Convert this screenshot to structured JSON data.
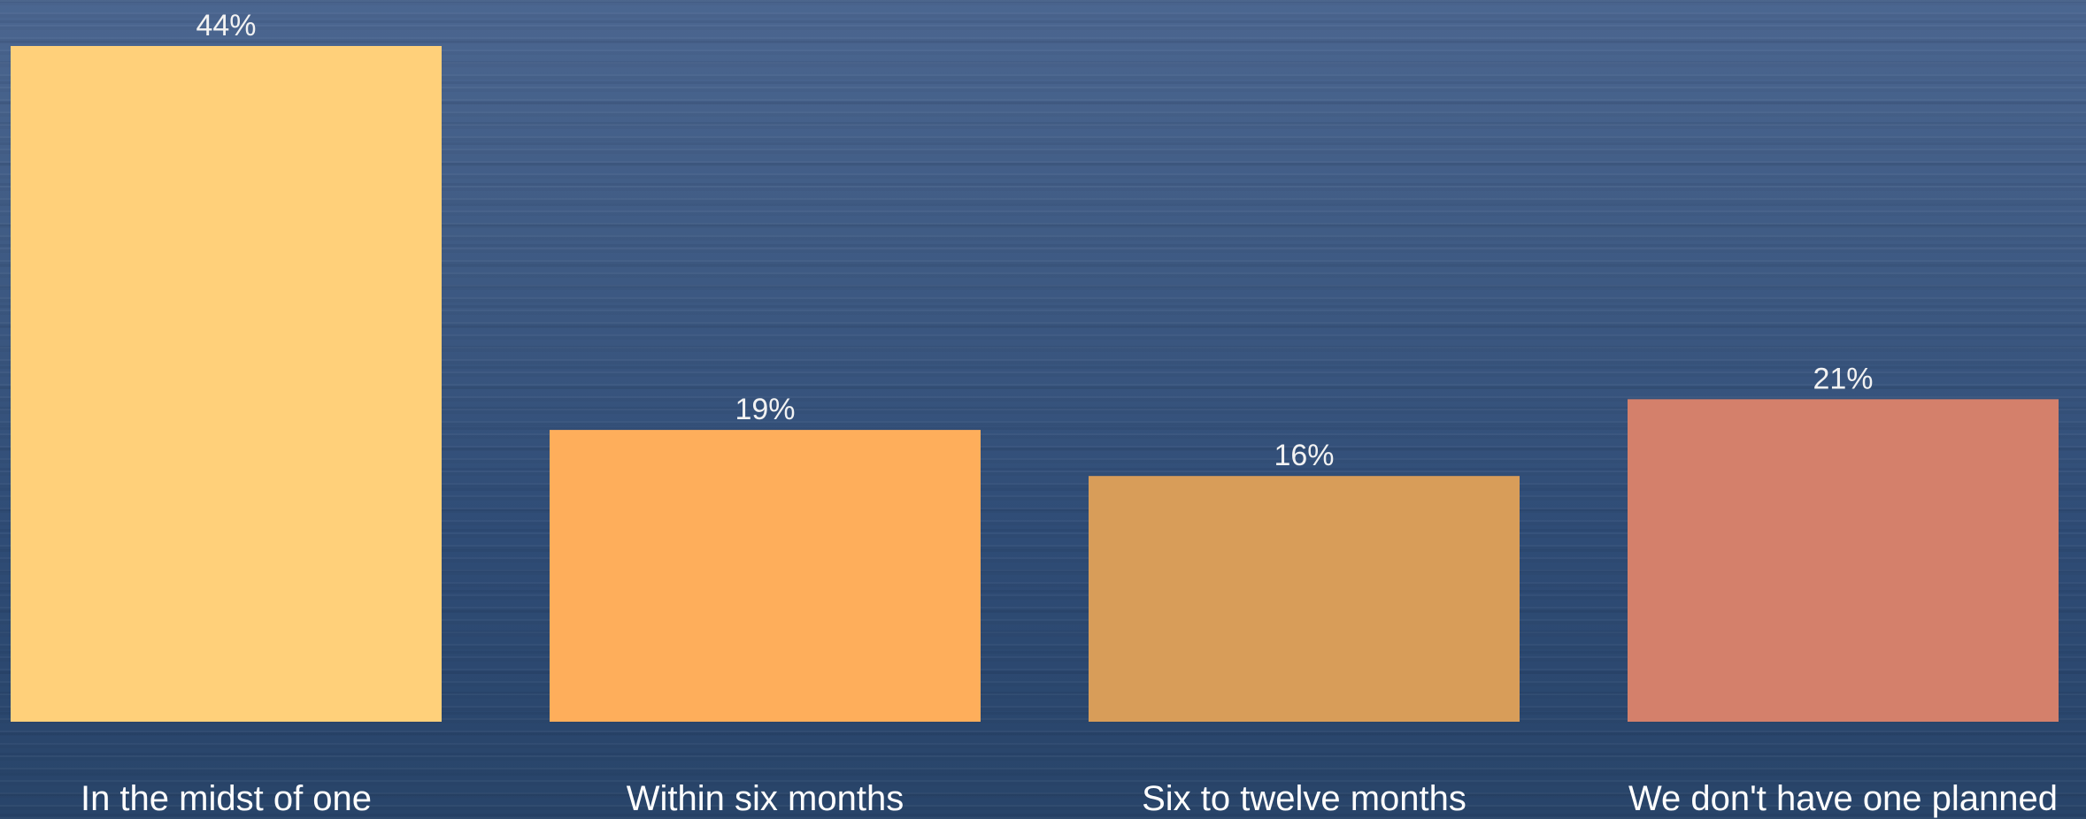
{
  "chart_data": {
    "type": "bar",
    "categories": [
      "In the midst of one",
      "Within six months",
      "Six to twelve months",
      "We don't have one planned"
    ],
    "values": [
      44,
      19,
      16,
      21
    ],
    "data_labels": [
      "44%",
      "19%",
      "16%",
      "21%"
    ],
    "colors": [
      "#ffd07a",
      "#feae5b",
      "#d89d59",
      "#d4806b"
    ],
    "title": "",
    "xlabel": "",
    "ylabel": "",
    "ylim": [
      0,
      44
    ],
    "grid": false,
    "legend": "none"
  }
}
